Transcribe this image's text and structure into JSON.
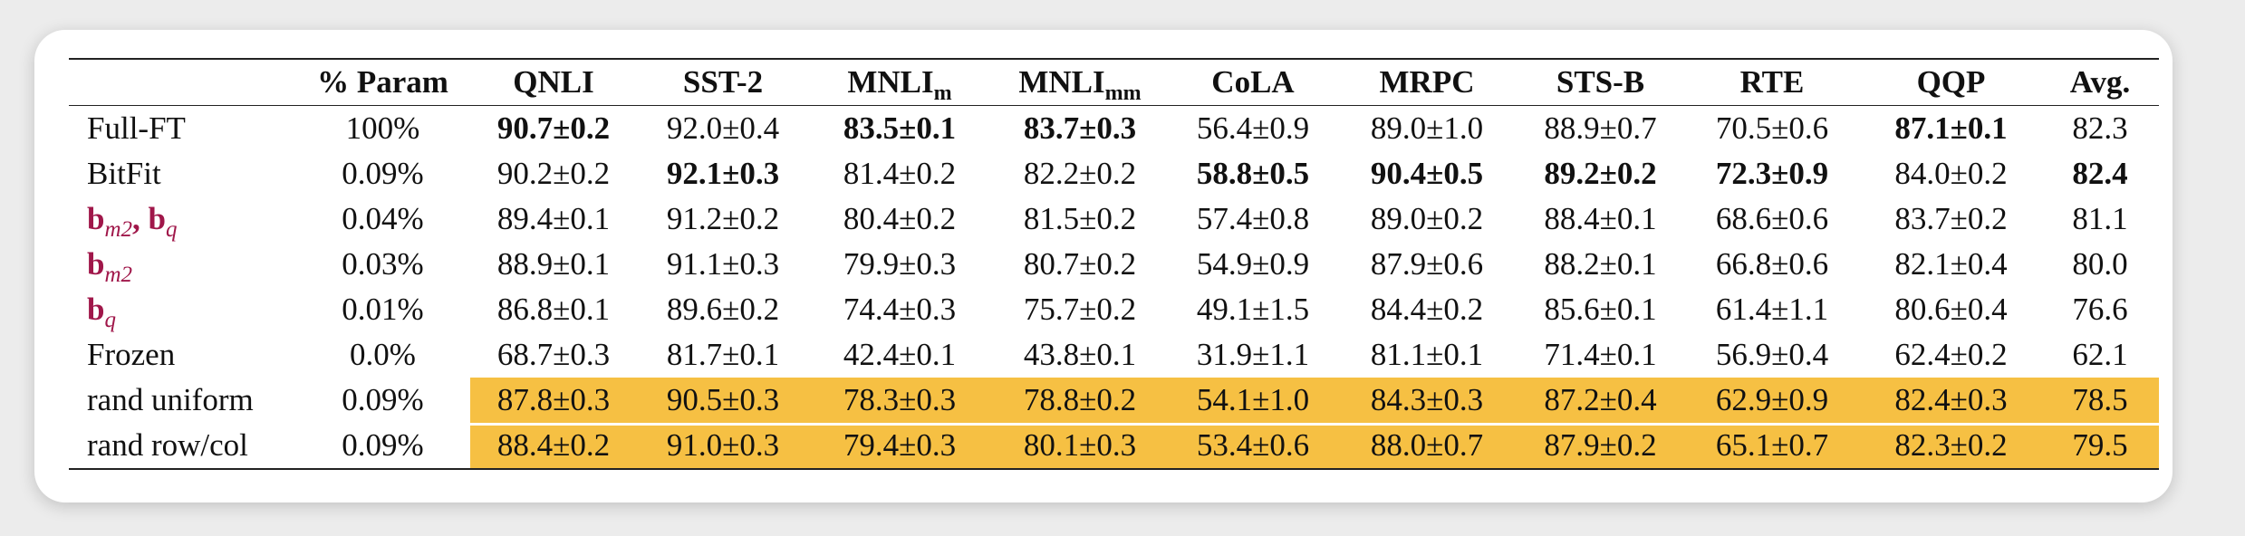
{
  "table": {
    "headers": {
      "param": "% Param",
      "qnli": "QNLI",
      "sst2": "SST-2",
      "mnli_m_base": "MNLI",
      "mnli_m_sub": "m",
      "mnli_mm_base": "MNLI",
      "mnli_mm_sub": "mm",
      "cola": "CoLA",
      "mrpc": "MRPC",
      "stsb": "STS-B",
      "rte": "RTE",
      "qqp": "QQP",
      "avg": "Avg."
    },
    "rows": [
      {
        "method": "Full-FT",
        "param": "100%",
        "qnli": "90.7±0.2",
        "sst2": "92.0±0.4",
        "mnli_m": "83.5±0.1",
        "mnli_mm": "83.7±0.3",
        "cola": "56.4±0.9",
        "mrpc": "89.0±1.0",
        "stsb": "88.9±0.7",
        "rte": "70.5±0.6",
        "qqp": "87.1±0.1",
        "avg": "82.3"
      },
      {
        "method": "BitFit",
        "param": "0.09%",
        "qnli": "90.2±0.2",
        "sst2": "92.1±0.3",
        "mnli_m": "81.4±0.2",
        "mnli_mm": "82.2±0.2",
        "cola": "58.8±0.5",
        "mrpc": "90.4±0.5",
        "stsb": "89.2±0.2",
        "rte": "72.3±0.9",
        "qqp": "84.0±0.2",
        "avg": "82.4"
      },
      {
        "method_b1": "b",
        "method_s1": "m2",
        "method_sep": ", ",
        "method_b2": "b",
        "method_s2": "q",
        "param": "0.04%",
        "qnli": "89.4±0.1",
        "sst2": "91.2±0.2",
        "mnli_m": "80.4±0.2",
        "mnli_mm": "81.5±0.2",
        "cola": "57.4±0.8",
        "mrpc": "89.0±0.2",
        "stsb": "88.4±0.1",
        "rte": "68.6±0.6",
        "qqp": "83.7±0.2",
        "avg": "81.1"
      },
      {
        "method_b1": "b",
        "method_s1": "m2",
        "param": "0.03%",
        "qnli": "88.9±0.1",
        "sst2": "91.1±0.3",
        "mnli_m": "79.9±0.3",
        "mnli_mm": "80.7±0.2",
        "cola": "54.9±0.9",
        "mrpc": "87.9±0.6",
        "stsb": "88.2±0.1",
        "rte": "66.8±0.6",
        "qqp": "82.1±0.4",
        "avg": "80.0"
      },
      {
        "method_b1": "b",
        "method_s1": "q",
        "param": "0.01%",
        "qnli": "86.8±0.1",
        "sst2": "89.6±0.2",
        "mnli_m": "74.4±0.3",
        "mnli_mm": "75.7±0.2",
        "cola": "49.1±1.5",
        "mrpc": "84.4±0.2",
        "stsb": "85.6±0.1",
        "rte": "61.4±1.1",
        "qqp": "80.6±0.4",
        "avg": "76.6"
      },
      {
        "method": "Frozen",
        "param": "0.0%",
        "qnli": "68.7±0.3",
        "sst2": "81.7±0.1",
        "mnli_m": "42.4±0.1",
        "mnli_mm": "43.8±0.1",
        "cola": "31.9±1.1",
        "mrpc": "81.1±0.1",
        "stsb": "71.4±0.1",
        "rte": "56.9±0.4",
        "qqp": "62.4±0.2",
        "avg": "62.1"
      },
      {
        "method": "rand uniform",
        "param": "0.09%",
        "qnli": "87.8±0.3",
        "sst2": "90.5±0.3",
        "mnli_m": "78.3±0.3",
        "mnli_mm": "78.8±0.2",
        "cola": "54.1±1.0",
        "mrpc": "84.3±0.3",
        "stsb": "87.2±0.4",
        "rte": "62.9±0.9",
        "qqp": "82.4±0.3",
        "avg": "78.5"
      },
      {
        "method": "rand row/col",
        "param": "0.09%",
        "qnli": "88.4±0.2",
        "sst2": "91.0±0.3",
        "mnli_m": "79.4±0.3",
        "mnli_mm": "80.1±0.3",
        "cola": "53.4±0.6",
        "mrpc": "88.0±0.7",
        "stsb": "87.9±0.2",
        "rte": "65.1±0.7",
        "qqp": "82.3±0.2",
        "avg": "79.5"
      }
    ],
    "colors": {
      "highlight": "#f6c043",
      "method_accent": "#a0174a"
    }
  }
}
